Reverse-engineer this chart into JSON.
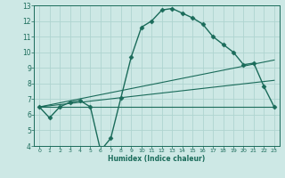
{
  "xlabel": "Humidex (Indice chaleur)",
  "bg_color": "#cde8e5",
  "grid_color": "#afd4d0",
  "line_color": "#1a6b5a",
  "xlim": [
    -0.5,
    23.5
  ],
  "ylim": [
    4,
    13
  ],
  "xticks": [
    0,
    1,
    2,
    3,
    4,
    5,
    6,
    7,
    8,
    9,
    10,
    11,
    12,
    13,
    14,
    15,
    16,
    17,
    18,
    19,
    20,
    21,
    22,
    23
  ],
  "yticks": [
    4,
    5,
    6,
    7,
    8,
    9,
    10,
    11,
    12,
    13
  ],
  "series": [
    {
      "x": [
        0,
        1,
        2,
        3,
        4,
        5,
        6,
        7,
        8,
        9,
        10,
        11,
        12,
        13,
        14,
        15,
        16,
        17,
        18,
        19,
        20,
        21,
        22,
        23
      ],
      "y": [
        6.5,
        5.8,
        6.5,
        6.8,
        6.9,
        6.5,
        3.7,
        4.5,
        7.1,
        9.7,
        11.6,
        12.0,
        12.7,
        12.8,
        12.5,
        12.2,
        11.8,
        11.0,
        10.5,
        10.0,
        9.2,
        9.3,
        7.8,
        6.5
      ],
      "marker": "D",
      "markersize": 2.5,
      "linewidth": 1.0
    },
    {
      "x": [
        0,
        23
      ],
      "y": [
        6.5,
        6.5
      ],
      "marker": null,
      "markersize": 0,
      "linewidth": 0.8
    },
    {
      "x": [
        0,
        23
      ],
      "y": [
        6.5,
        9.5
      ],
      "marker": null,
      "markersize": 0,
      "linewidth": 0.8
    },
    {
      "x": [
        0,
        23
      ],
      "y": [
        6.5,
        8.2
      ],
      "marker": null,
      "markersize": 0,
      "linewidth": 0.8
    }
  ]
}
